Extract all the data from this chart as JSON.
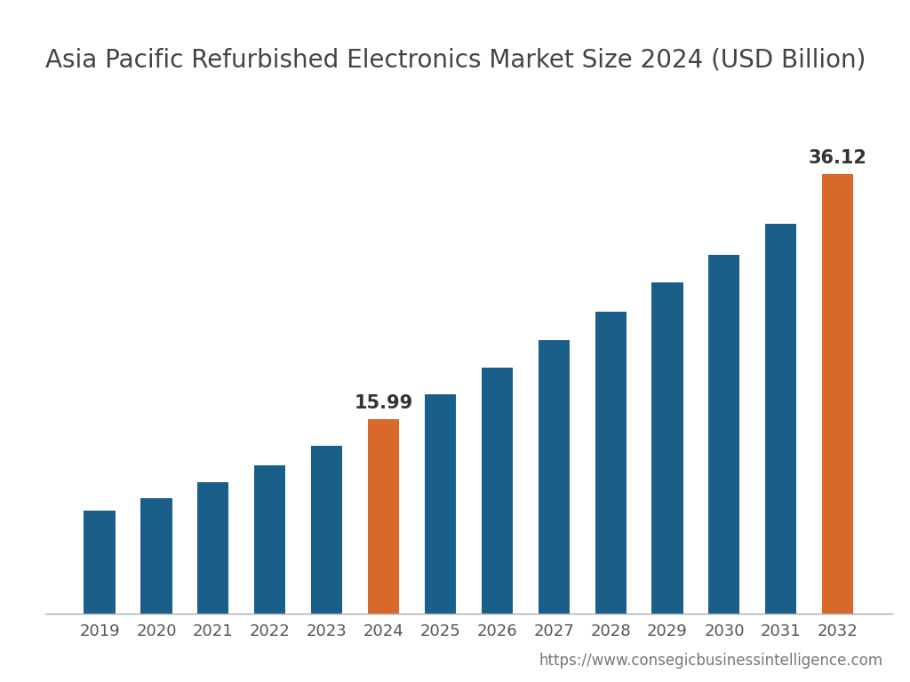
{
  "title": "Asia Pacific Refurbished Electronics Market Size 2024 (USD Billion)",
  "years": [
    2019,
    2020,
    2021,
    2022,
    2023,
    2024,
    2025,
    2026,
    2027,
    2028,
    2029,
    2030,
    2031,
    2032
  ],
  "values": [
    8.5,
    9.5,
    10.8,
    12.2,
    13.8,
    15.99,
    18.0,
    20.2,
    22.5,
    24.8,
    27.2,
    29.5,
    32.0,
    36.12
  ],
  "bar_colors": [
    "#1a5f8a",
    "#1a5f8a",
    "#1a5f8a",
    "#1a5f8a",
    "#1a5f8a",
    "#d9692a",
    "#1a5f8a",
    "#1a5f8a",
    "#1a5f8a",
    "#1a5f8a",
    "#1a5f8a",
    "#1a5f8a",
    "#1a5f8a",
    "#d9692a"
  ],
  "annotations": [
    {
      "year_idx": 5,
      "value": 15.99,
      "label": "15.99"
    },
    {
      "year_idx": 13,
      "value": 36.12,
      "label": "36.12"
    }
  ],
  "background_color": "#ffffff",
  "title_fontsize": 20,
  "title_color": "#444444",
  "title_fontweight": "normal",
  "annotation_fontsize": 15,
  "annotation_color": "#333333",
  "tick_fontsize": 13,
  "tick_color": "#555555",
  "bar_width": 0.55,
  "ylim_max": 42,
  "url_text": "https://www.consegicbusinessintelligence.com",
  "url_fontsize": 12,
  "url_color": "#777777"
}
